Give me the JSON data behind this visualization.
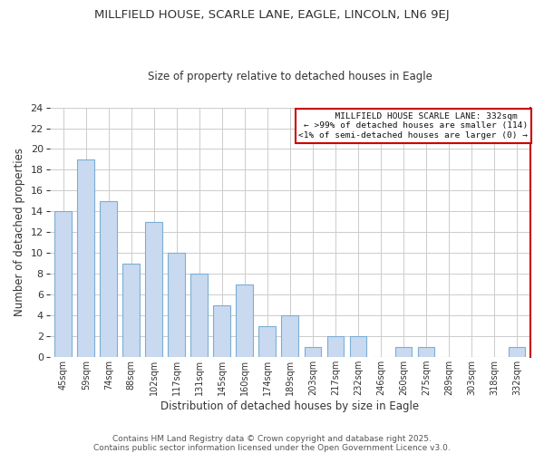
{
  "title": "MILLFIELD HOUSE, SCARLE LANE, EAGLE, LINCOLN, LN6 9EJ",
  "subtitle": "Size of property relative to detached houses in Eagle",
  "xlabel": "Distribution of detached houses by size in Eagle",
  "ylabel": "Number of detached properties",
  "bar_labels": [
    "45sqm",
    "59sqm",
    "74sqm",
    "88sqm",
    "102sqm",
    "117sqm",
    "131sqm",
    "145sqm",
    "160sqm",
    "174sqm",
    "189sqm",
    "203sqm",
    "217sqm",
    "232sqm",
    "246sqm",
    "260sqm",
    "275sqm",
    "289sqm",
    "303sqm",
    "318sqm",
    "332sqm"
  ],
  "bar_values": [
    14,
    19,
    15,
    9,
    13,
    10,
    8,
    5,
    7,
    3,
    4,
    1,
    2,
    2,
    0,
    1,
    1,
    0,
    0,
    0,
    1
  ],
  "bar_color": "#c9d9f0",
  "bar_edge_color": "#7bafd4",
  "highlight_bar_index": 20,
  "annotation_box_edge_color": "#cc0000",
  "annotation_lines": [
    "  MILLFIELD HOUSE SCARLE LANE: 332sqm  ",
    "← >99% of detached houses are smaller (114)",
    "<1% of semi-detached houses are larger (0) →"
  ],
  "ylim": [
    0,
    24
  ],
  "yticks": [
    0,
    2,
    4,
    6,
    8,
    10,
    12,
    14,
    16,
    18,
    20,
    22,
    24
  ],
  "grid_color": "#cccccc",
  "bg_color": "#ffffff",
  "footnote1": "Contains HM Land Registry data © Crown copyright and database right 2025.",
  "footnote2": "Contains public sector information licensed under the Open Government Licence v3.0."
}
